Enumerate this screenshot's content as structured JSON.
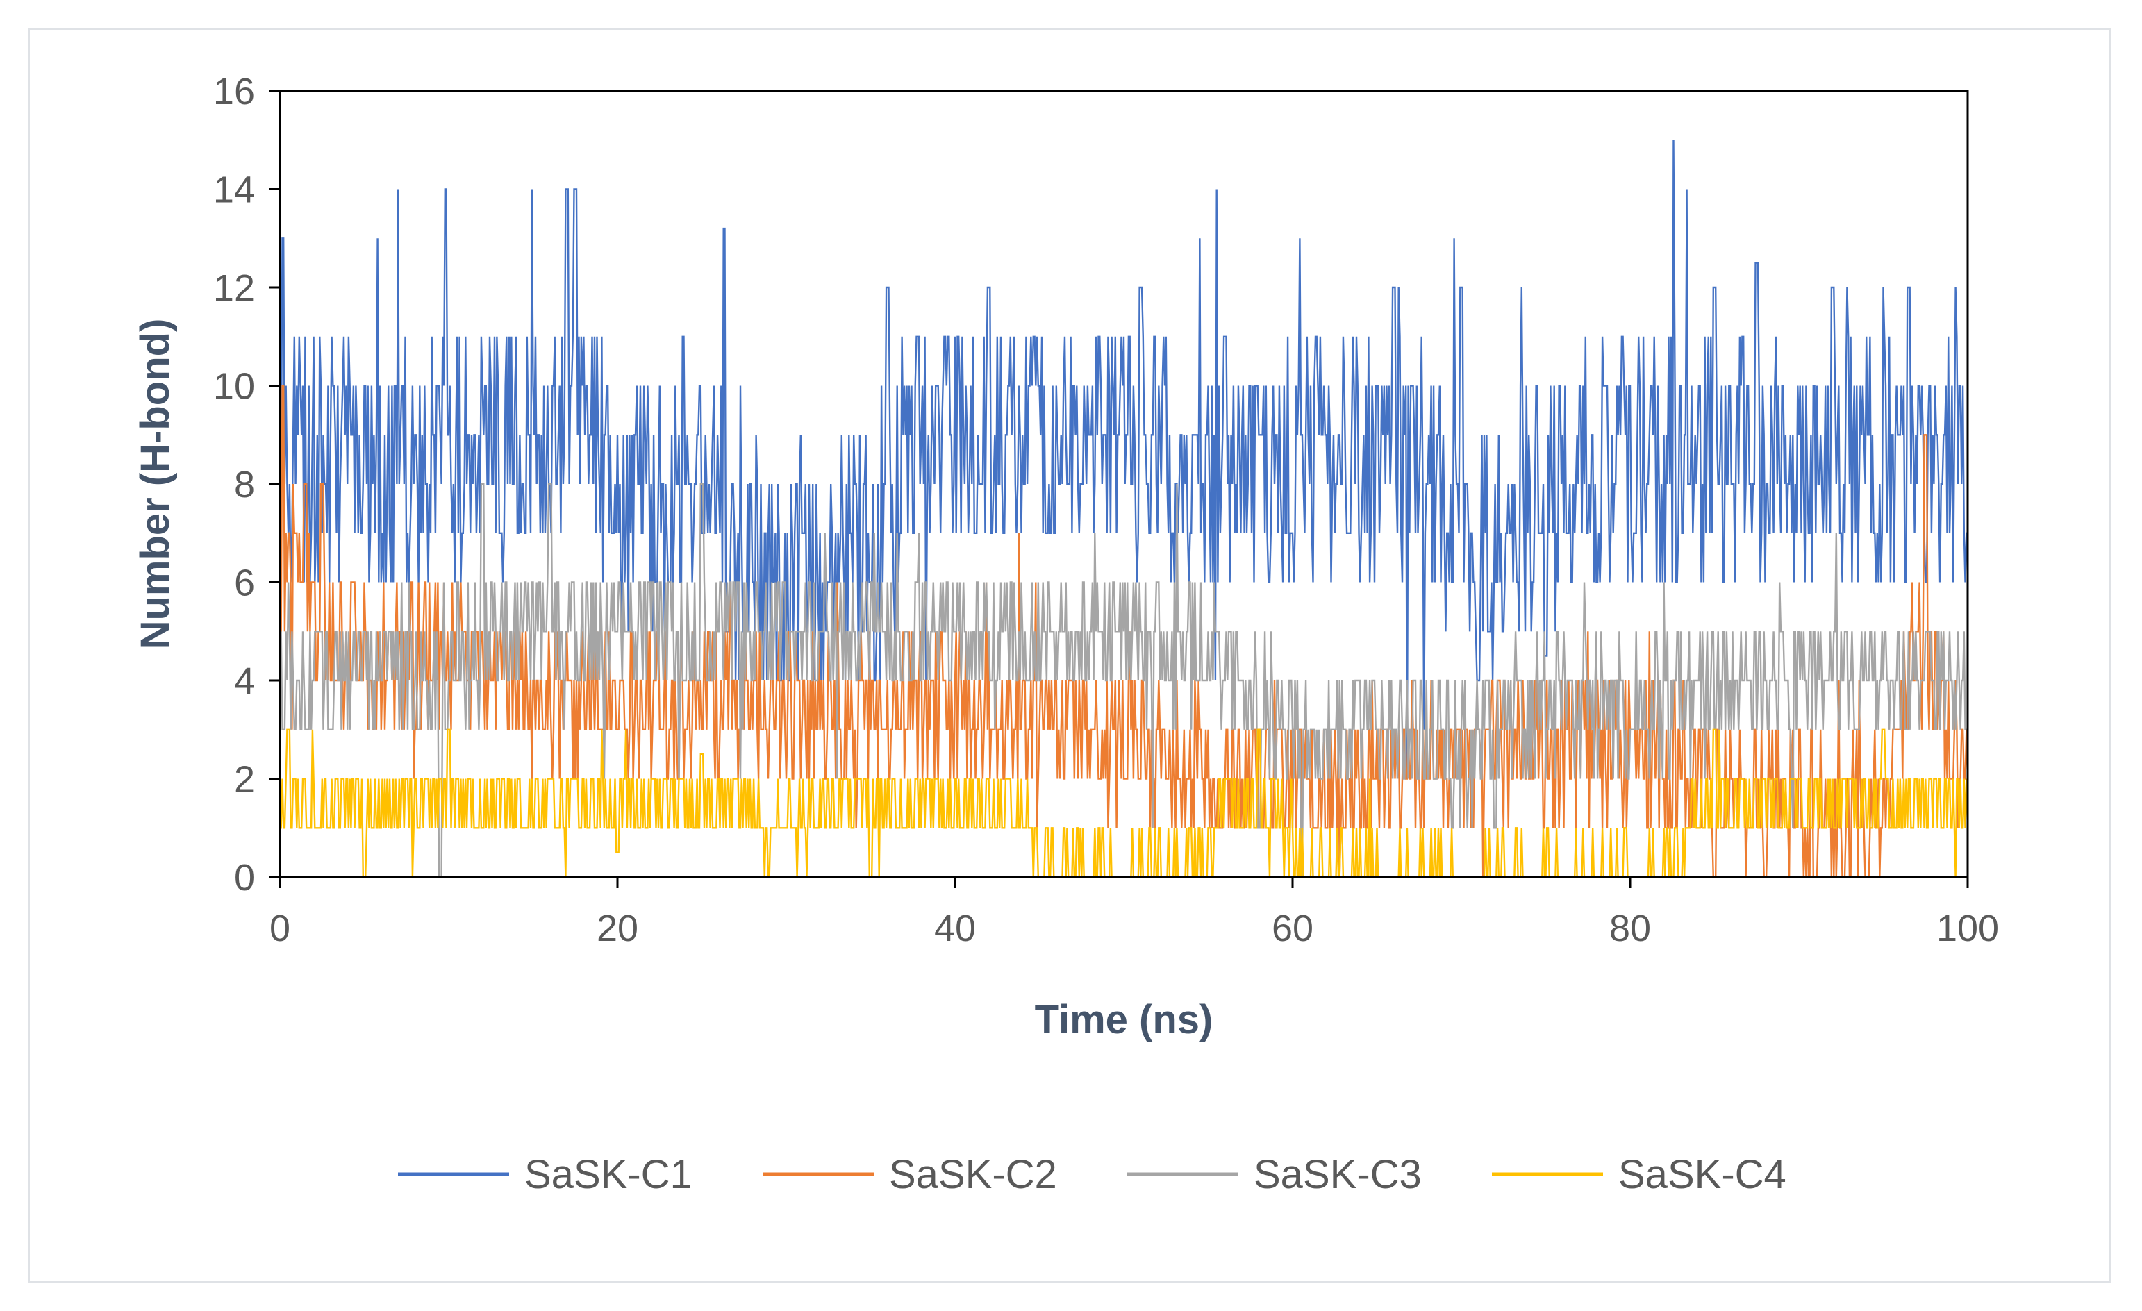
{
  "chart_data": {
    "type": "line",
    "title": "",
    "xlabel": "Time (ns)",
    "ylabel": "Number (H-bond)",
    "xlim": [
      0,
      100
    ],
    "ylim": [
      0,
      16
    ],
    "xticks": [
      0,
      20,
      40,
      60,
      80,
      100
    ],
    "yticks": [
      0,
      2,
      4,
      6,
      8,
      10,
      12,
      14,
      16
    ],
    "grid": false,
    "legend_position": "bottom",
    "series": [
      {
        "name": "SaSK-C1",
        "color": "#4472c4",
        "profile": [
          [
            0,
            9
          ],
          [
            2,
            8.5
          ],
          [
            6,
            8
          ],
          [
            10,
            8.5
          ],
          [
            14,
            9
          ],
          [
            18,
            9.5
          ],
          [
            20,
            7.5
          ],
          [
            23,
            7.5
          ],
          [
            25,
            9
          ],
          [
            27,
            6.5
          ],
          [
            30,
            6
          ],
          [
            33,
            6.5
          ],
          [
            36,
            6.5
          ],
          [
            37,
            9
          ],
          [
            45,
            9
          ],
          [
            50,
            9
          ],
          [
            55,
            8.5
          ],
          [
            56,
            8
          ],
          [
            60,
            8.5
          ],
          [
            65,
            8.5
          ],
          [
            69,
            8
          ],
          [
            70,
            6.5
          ],
          [
            75,
            8
          ],
          [
            80,
            8.5
          ],
          [
            85,
            8.5
          ],
          [
            89,
            8.5
          ],
          [
            90,
            8
          ],
          [
            95,
            8.5
          ],
          [
            100,
            8.5
          ]
        ],
        "spread": 2.5,
        "spikes": [
          [
            0.2,
            13
          ],
          [
            9.8,
            14
          ],
          [
            17,
            14
          ],
          [
            17.5,
            14
          ],
          [
            26.3,
            13.2
          ],
          [
            36,
            12
          ],
          [
            42,
            12
          ],
          [
            51,
            12
          ],
          [
            56,
            11
          ],
          [
            66,
            12
          ],
          [
            70,
            12
          ],
          [
            85,
            12
          ],
          [
            87.5,
            12.5
          ],
          [
            92,
            12
          ],
          [
            96.5,
            12
          ]
        ],
        "dips": [
          [
            26.5,
            5
          ],
          [
            27.5,
            5
          ],
          [
            71,
            4
          ],
          [
            75,
            4.5
          ]
        ]
      },
      {
        "name": "SaSK-C2",
        "color": "#ed7d31",
        "profile": [
          [
            0,
            6
          ],
          [
            2,
            5.5
          ],
          [
            5,
            4.5
          ],
          [
            10,
            4.5
          ],
          [
            15,
            4
          ],
          [
            20,
            3.5
          ],
          [
            30,
            3.5
          ],
          [
            40,
            3.5
          ],
          [
            48,
            3
          ],
          [
            55,
            2
          ],
          [
            60,
            2
          ],
          [
            65,
            2
          ],
          [
            70,
            2.5
          ],
          [
            80,
            2.5
          ],
          [
            90,
            1.5
          ],
          [
            95,
            1
          ],
          [
            97,
            5
          ],
          [
            100,
            2
          ]
        ],
        "spread": 1.5,
        "spikes": [
          [
            0.2,
            10
          ],
          [
            97.5,
            9
          ],
          [
            1.5,
            8
          ],
          [
            2.5,
            8
          ]
        ],
        "dips": [
          [
            85,
            0
          ],
          [
            88,
            0
          ],
          [
            91,
            0
          ],
          [
            94,
            0
          ]
        ]
      },
      {
        "name": "SaSK-C3",
        "color": "#a5a5a5",
        "profile": [
          [
            0,
            4
          ],
          [
            5,
            4
          ],
          [
            10,
            4.5
          ],
          [
            15,
            5
          ],
          [
            20,
            5
          ],
          [
            25,
            5
          ],
          [
            28,
            5
          ],
          [
            30,
            5
          ],
          [
            40,
            5
          ],
          [
            50,
            5
          ],
          [
            55,
            4.5
          ],
          [
            58,
            4
          ],
          [
            60,
            3
          ],
          [
            65,
            3
          ],
          [
            70,
            2.5
          ],
          [
            75,
            3.5
          ],
          [
            80,
            3.5
          ],
          [
            90,
            4
          ],
          [
            100,
            4
          ]
        ],
        "spread": 1.4,
        "spikes": [
          [
            12,
            8
          ],
          [
            16,
            8
          ],
          [
            25,
            8
          ]
        ],
        "dips": [
          [
            9.5,
            0
          ],
          [
            58,
            1
          ],
          [
            72,
            1
          ]
        ]
      },
      {
        "name": "SaSK-C4",
        "color": "#ffc000",
        "profile": [
          [
            0,
            1.5
          ],
          [
            10,
            1.5
          ],
          [
            15,
            1.5
          ],
          [
            20,
            1.5
          ],
          [
            28,
            1.5
          ],
          [
            29,
            0.5
          ],
          [
            30,
            1.5
          ],
          [
            35,
            1.5
          ],
          [
            44,
            1.5
          ],
          [
            45,
            0.3
          ],
          [
            55,
            0.2
          ],
          [
            56,
            1.5
          ],
          [
            59,
            1.5
          ],
          [
            60,
            0.1
          ],
          [
            80,
            0.1
          ],
          [
            83,
            0.5
          ],
          [
            84,
            1.5
          ],
          [
            95,
            1.5
          ],
          [
            100,
            1.5
          ]
        ],
        "spread": 0.6,
        "spikes": [
          [
            0.5,
            3
          ],
          [
            10,
            3
          ],
          [
            25,
            2.5
          ],
          [
            58,
            3
          ],
          [
            85,
            3
          ],
          [
            95,
            3
          ]
        ],
        "dips": [
          [
            5,
            0
          ],
          [
            20,
            0.5
          ],
          [
            35,
            0
          ],
          [
            45,
            0
          ]
        ]
      }
    ]
  }
}
